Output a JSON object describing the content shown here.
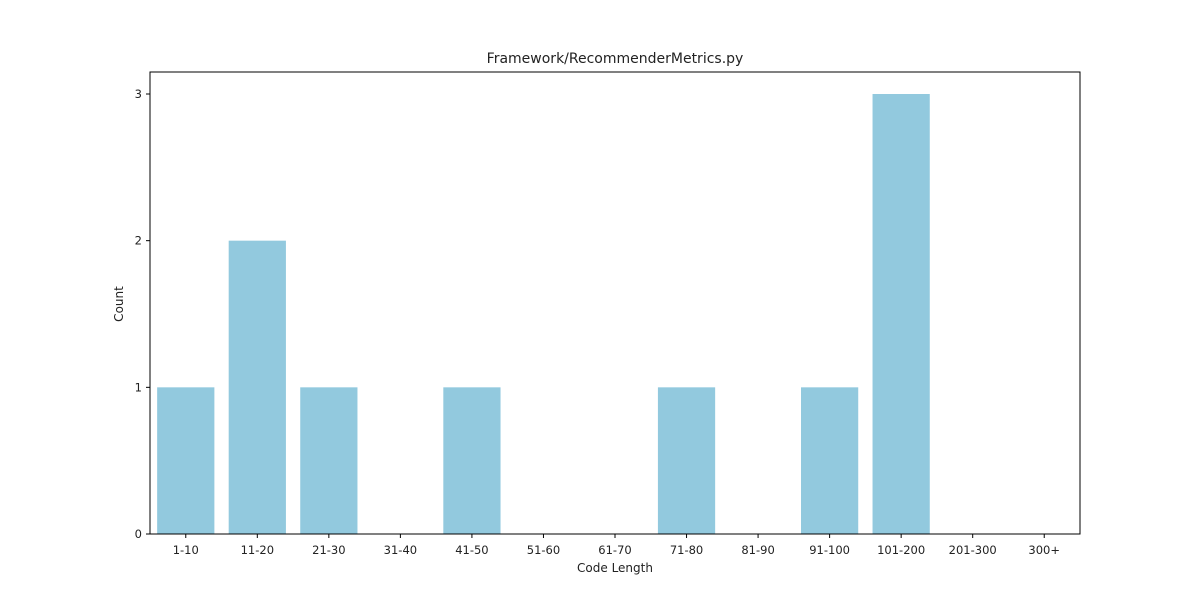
{
  "chart_data": {
    "type": "bar",
    "title": "Framework/RecommenderMetrics.py",
    "xlabel": "Code Length",
    "ylabel": "Count",
    "categories": [
      "1-10",
      "11-20",
      "21-30",
      "31-40",
      "41-50",
      "51-60",
      "61-70",
      "71-80",
      "81-90",
      "91-100",
      "101-200",
      "201-300",
      "300+"
    ],
    "values": [
      1,
      2,
      1,
      0,
      1,
      0,
      0,
      1,
      0,
      1,
      3,
      0,
      0
    ],
    "ylim": [
      0,
      3.15
    ],
    "yticks": [
      0,
      1,
      2,
      3
    ],
    "grid": false,
    "bar_color": "#92c9de"
  }
}
